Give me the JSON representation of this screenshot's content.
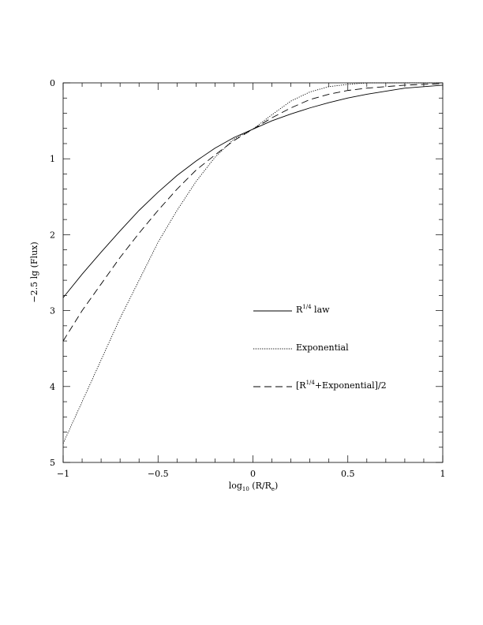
{
  "chart_data": {
    "type": "line",
    "xlabel": {
      "main": "log",
      "sub": "10",
      "rest": " (R/R",
      "sub2": "e",
      "end": ")"
    },
    "ylabel": "−2.5 lg (Flux)",
    "xlim": [
      -1,
      1
    ],
    "ylim": [
      0,
      5
    ],
    "y_inverted": true,
    "x_ticks": [
      -1,
      -0.5,
      0,
      0.5,
      1
    ],
    "x_tick_labels": [
      "−1",
      "−0.5",
      "0",
      "0.5",
      "1"
    ],
    "y_ticks": [
      0,
      1,
      2,
      3,
      4,
      5
    ],
    "y_tick_labels": [
      "0",
      "1",
      "2",
      "3",
      "4",
      "5"
    ],
    "grid": false,
    "legend_position": "lower-center",
    "series": [
      {
        "name": "R1/4 law",
        "name_parts": {
          "main": "R",
          "sup": "1/4",
          "rest": " law"
        },
        "dash": "solid",
        "x": [
          -1,
          -0.9,
          -0.8,
          -0.7,
          -0.6,
          -0.5,
          -0.4,
          -0.3,
          -0.2,
          -0.1,
          0,
          0.1,
          0.2,
          0.3,
          0.4,
          0.5,
          0.6,
          0.7,
          0.8,
          0.9,
          1
        ],
        "y": [
          2.83,
          2.52,
          2.23,
          1.95,
          1.68,
          1.44,
          1.22,
          1.03,
          0.86,
          0.72,
          0.61,
          0.5,
          0.41,
          0.33,
          0.26,
          0.2,
          0.15,
          0.11,
          0.07,
          0.05,
          0.03
        ]
      },
      {
        "name": "Exponential",
        "name_parts": {
          "main": "Exponential",
          "sup": "",
          "rest": ""
        },
        "dash": "dotted",
        "x": [
          -1,
          -0.9,
          -0.8,
          -0.7,
          -0.6,
          -0.5,
          -0.4,
          -0.3,
          -0.2,
          -0.1,
          0,
          0.1,
          0.2,
          0.3,
          0.4,
          0.5,
          0.6,
          0.7,
          0.8,
          0.9,
          1
        ],
        "y": [
          4.75,
          4.2,
          3.65,
          3.1,
          2.6,
          2.1,
          1.68,
          1.3,
          0.98,
          0.74,
          0.61,
          0.42,
          0.24,
          0.12,
          0.05,
          0.02,
          0.0,
          0.0,
          0.0,
          0.0,
          0.0
        ]
      },
      {
        "name": "[R1/4+Exponential]/2",
        "name_parts": {
          "main": "[R",
          "sup": "1/4",
          "rest": "+Exponential]/2"
        },
        "dash": "dashed",
        "x": [
          -1,
          -0.9,
          -0.8,
          -0.7,
          -0.6,
          -0.5,
          -0.4,
          -0.3,
          -0.2,
          -0.1,
          0,
          0.1,
          0.2,
          0.3,
          0.4,
          0.5,
          0.6,
          0.7,
          0.8,
          0.9,
          1
        ],
        "y": [
          3.4,
          3.0,
          2.65,
          2.3,
          1.98,
          1.68,
          1.4,
          1.15,
          0.95,
          0.76,
          0.61,
          0.46,
          0.33,
          0.22,
          0.15,
          0.1,
          0.07,
          0.05,
          0.03,
          0.02,
          0.01
        ]
      }
    ]
  }
}
